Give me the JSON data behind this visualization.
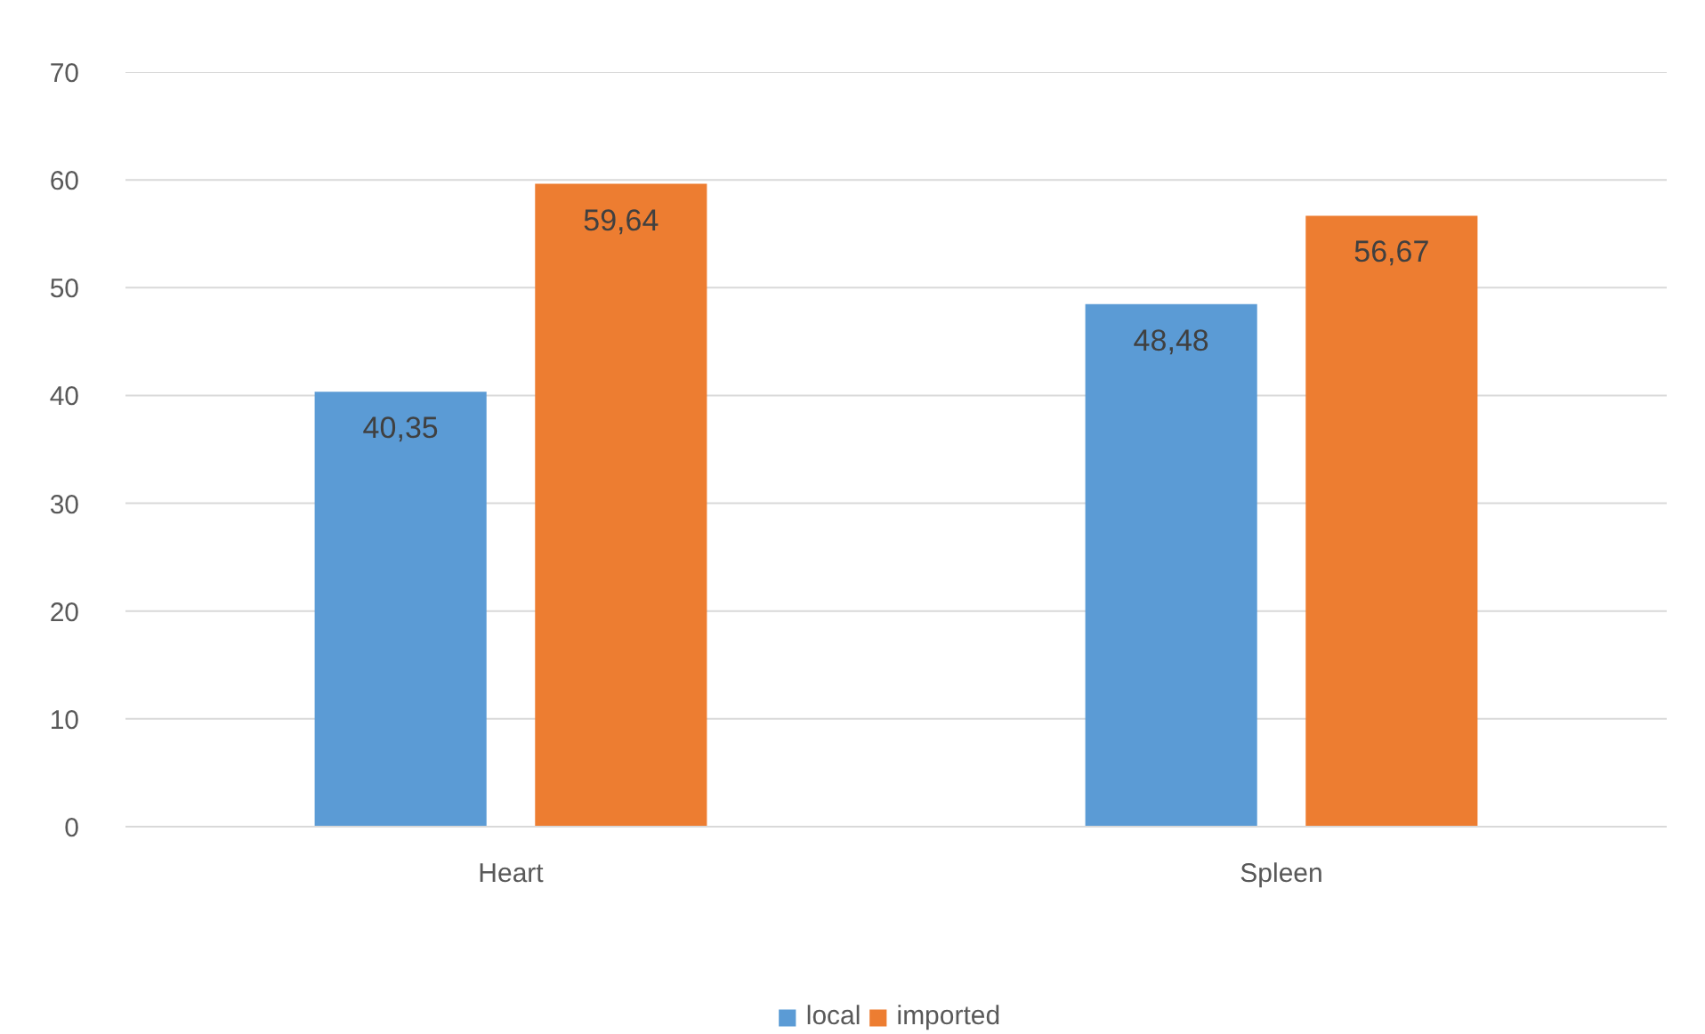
{
  "chart_data": {
    "type": "bar",
    "categories": [
      "Heart",
      "Spleen"
    ],
    "series": [
      {
        "name": "local",
        "color": "#5b9bd5",
        "values": [
          40.35,
          48.48
        ],
        "value_labels": [
          "40,35",
          "48,48"
        ]
      },
      {
        "name": "imported",
        "color": "#ed7d31",
        "values": [
          59.64,
          56.67
        ],
        "value_labels": [
          "59,64",
          "56,67"
        ]
      }
    ],
    "ylim": [
      0,
      70
    ],
    "yticks": [
      0,
      10,
      20,
      30,
      40,
      50,
      60,
      70
    ],
    "grid": "y",
    "legend": "bottom"
  }
}
